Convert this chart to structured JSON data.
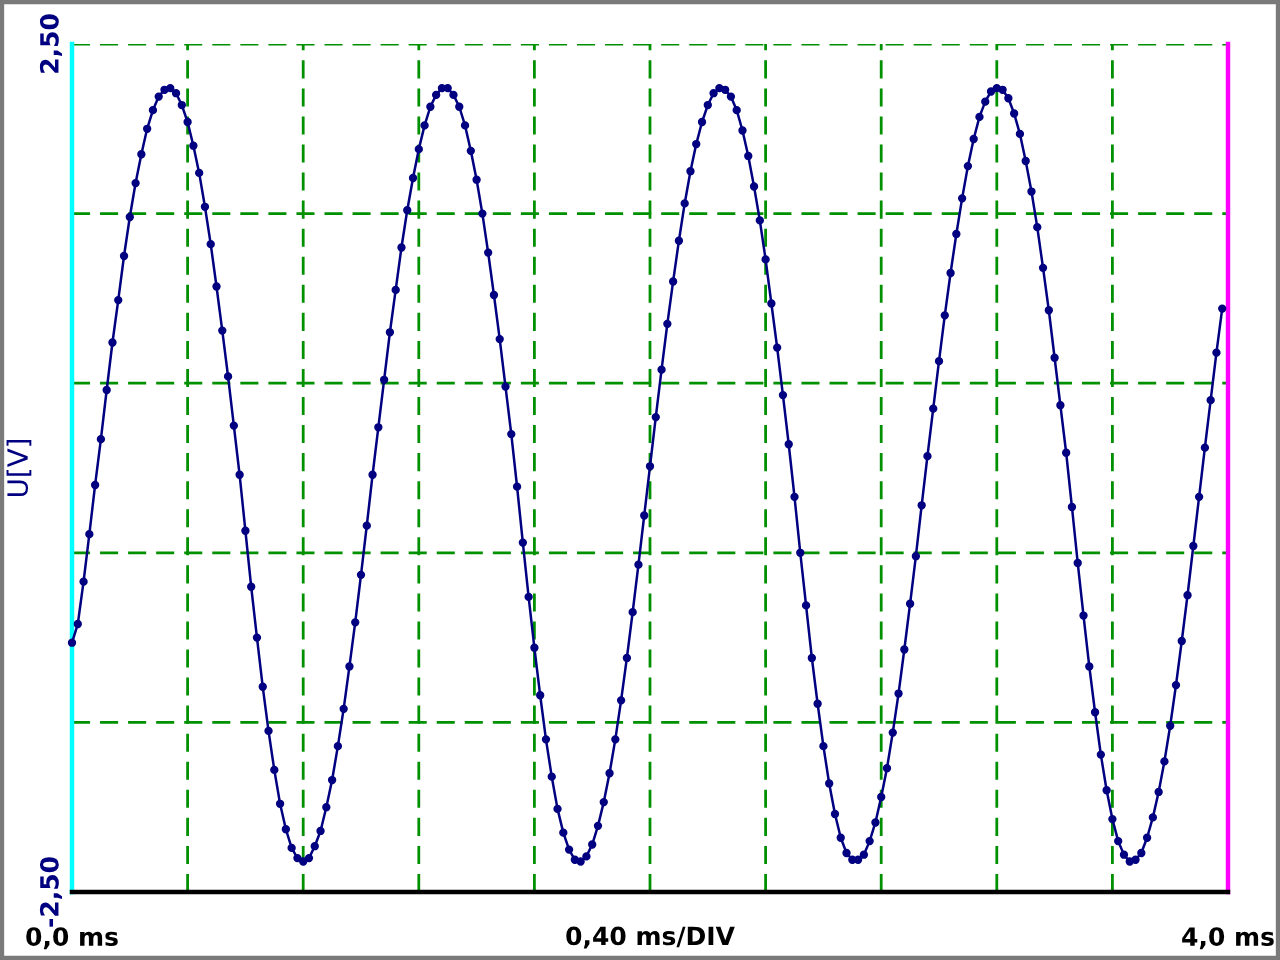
{
  "chart_data": {
    "type": "line",
    "xlabel": "0,40 ms/DIV",
    "ylabel": "U[V]",
    "x": [
      0,
      0.02,
      0.04,
      0.06,
      0.08,
      0.1,
      0.12,
      0.14,
      0.16,
      0.18,
      0.2,
      0.22,
      0.24,
      0.26,
      0.28,
      0.3,
      0.32,
      0.34,
      0.36,
      0.38,
      0.4,
      0.42,
      0.44,
      0.46,
      0.48,
      0.5,
      0.52,
      0.54,
      0.56,
      0.58,
      0.6,
      0.62,
      0.64,
      0.66,
      0.68,
      0.7,
      0.72,
      0.74,
      0.76,
      0.78,
      0.8,
      0.82,
      0.84,
      0.86,
      0.88,
      0.9,
      0.92,
      0.94,
      0.96,
      0.98,
      1,
      1.02,
      1.04,
      1.06,
      1.08,
      1.1,
      1.12,
      1.14,
      1.16,
      1.18,
      1.2,
      1.22,
      1.24,
      1.26,
      1.28,
      1.3,
      1.32,
      1.34,
      1.36,
      1.38,
      1.4,
      1.42,
      1.44,
      1.46,
      1.48,
      1.5,
      1.52,
      1.54,
      1.56,
      1.58,
      1.6,
      1.62,
      1.64,
      1.66,
      1.68,
      1.7,
      1.72,
      1.74,
      1.76,
      1.78,
      1.8,
      1.82,
      1.84,
      1.86,
      1.88,
      1.9,
      1.92,
      1.94,
      1.96,
      1.98,
      2,
      2.02,
      2.04,
      2.06,
      2.08,
      2.1,
      2.12,
      2.14,
      2.16,
      2.18,
      2.2,
      2.22,
      2.24,
      2.26,
      2.28,
      2.3,
      2.32,
      2.34,
      2.36,
      2.38,
      2.4,
      2.42,
      2.44,
      2.46,
      2.48,
      2.5,
      2.52,
      2.54,
      2.56,
      2.58,
      2.6,
      2.62,
      2.64,
      2.66,
      2.68,
      2.7,
      2.72,
      2.74,
      2.76,
      2.78,
      2.8,
      2.82,
      2.84,
      2.86,
      2.88,
      2.9,
      2.92,
      2.94,
      2.96,
      2.98,
      3,
      3.02,
      3.04,
      3.06,
      3.08,
      3.1,
      3.12,
      3.14,
      3.16,
      3.18,
      3.2,
      3.22,
      3.24,
      3.26,
      3.28,
      3.3,
      3.32,
      3.34,
      3.36,
      3.38,
      3.4,
      3.42,
      3.44,
      3.46,
      3.48,
      3.5,
      3.52,
      3.54,
      3.56,
      3.58,
      3.6,
      3.62,
      3.64,
      3.66,
      3.68,
      3.7,
      3.72,
      3.74,
      3.76,
      3.78,
      3.8,
      3.82,
      3.84,
      3.86,
      3.88,
      3.9,
      3.92,
      3.94,
      3.96,
      3.98
    ],
    "series": [
      {
        "color": "#000080",
        "values": [
          -1.03,
          -0.92,
          -0.67,
          -0.39,
          -0.1,
          0.17,
          0.46,
          0.74,
          0.99,
          1.25,
          1.48,
          1.68,
          1.85,
          2.0,
          2.11,
          2.19,
          2.23,
          2.24,
          2.21,
          2.14,
          2.04,
          1.9,
          1.74,
          1.54,
          1.32,
          1.07,
          0.81,
          0.54,
          0.25,
          -0.04,
          -0.37,
          -0.7,
          -1.0,
          -1.29,
          -1.55,
          -1.78,
          -1.98,
          -2.13,
          -2.24,
          -2.3,
          -2.32,
          -2.3,
          -2.23,
          -2.14,
          -2.0,
          -1.84,
          -1.64,
          -1.42,
          -1.17,
          -0.91,
          -0.63,
          -0.34,
          -0.04,
          0.24,
          0.52,
          0.8,
          1.05,
          1.3,
          1.52,
          1.71,
          1.88,
          2.02,
          2.13,
          2.2,
          2.24,
          2.24,
          2.2,
          2.13,
          2.02,
          1.87,
          1.7,
          1.5,
          1.27,
          1.02,
          0.76,
          0.48,
          0.2,
          -0.11,
          -0.44,
          -0.76,
          -1.06,
          -1.34,
          -1.6,
          -1.82,
          -2.01,
          -2.15,
          -2.25,
          -2.31,
          -2.32,
          -2.29,
          -2.22,
          -2.11,
          -1.97,
          -1.8,
          -1.6,
          -1.37,
          -1.12,
          -0.85,
          -0.57,
          -0.28,
          0.01,
          0.3,
          0.58,
          0.85,
          1.1,
          1.34,
          1.56,
          1.75,
          1.91,
          2.04,
          2.14,
          2.21,
          2.24,
          2.23,
          2.19,
          2.11,
          1.99,
          1.84,
          1.66,
          1.46,
          1.23,
          0.97,
          0.71,
          0.43,
          0.14,
          -0.17,
          -0.5,
          -0.81,
          -1.12,
          -1.39,
          -1.64,
          -1.86,
          -2.04,
          -2.18,
          -2.27,
          -2.31,
          -2.31,
          -2.28,
          -2.2,
          -2.09,
          -1.94,
          -1.77,
          -1.56,
          -1.33,
          -1.07,
          -0.8,
          -0.52,
          -0.22,
          0.07,
          0.35,
          0.63,
          0.9,
          1.15,
          1.38,
          1.59,
          1.78,
          1.94,
          2.07,
          2.16,
          2.22,
          2.24,
          2.23,
          2.18,
          2.09,
          1.97,
          1.81,
          1.63,
          1.42,
          1.18,
          0.93,
          0.65,
          0.37,
          0.09,
          -0.23,
          -0.56,
          -0.87,
          -1.17,
          -1.44,
          -1.69,
          -1.9,
          -2.07,
          -2.2,
          -2.28,
          -2.32,
          -2.31,
          -2.27,
          -2.18,
          -2.06,
          -1.91,
          -1.73,
          -1.52,
          -1.28,
          -1.02,
          -0.75,
          -0.46,
          -0.17,
          0.12,
          0.4,
          0.68,
          0.94
        ]
      }
    ],
    "xlim": [
      0,
      4
    ],
    "ylim": [
      -2.5,
      2.5
    ],
    "xticks": [
      {
        "value": 0,
        "label": "0,0 ms"
      },
      {
        "value": 0.4,
        "label": null
      },
      {
        "value": 0.8,
        "label": null
      },
      {
        "value": 1.2,
        "label": null
      },
      {
        "value": 1.6,
        "label": null
      },
      {
        "value": 2.0,
        "label": null
      },
      {
        "value": 2.4,
        "label": null
      },
      {
        "value": 2.8,
        "label": null
      },
      {
        "value": 3.2,
        "label": null
      },
      {
        "value": 3.6,
        "label": null
      },
      {
        "value": 4,
        "label": "4,0 ms"
      }
    ],
    "yticks": [
      {
        "value": -2.5,
        "label": "-2,50"
      },
      {
        "value": -1.5,
        "label": null
      },
      {
        "value": -0.5,
        "label": null
      },
      {
        "value": 0.5,
        "label": null
      },
      {
        "value": 1.5,
        "label": null
      },
      {
        "value": 2.5,
        "label": "2,50"
      }
    ],
    "grid": true,
    "marker": "circle",
    "line_style": "solid"
  }
}
